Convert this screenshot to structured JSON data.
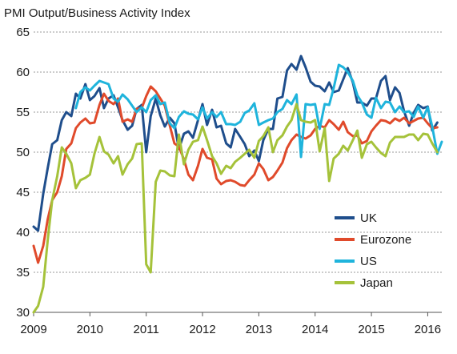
{
  "chart_data": {
    "type": "line",
    "title": "PMI Output/Business Activity Index",
    "xlabel": "",
    "ylabel": "",
    "xlim": [
      2009.0,
      2016.25
    ],
    "ylim": [
      30,
      65
    ],
    "x_ticks": [
      "2009",
      "2010",
      "2011",
      "2012",
      "2013",
      "2014",
      "2015",
      "2016"
    ],
    "y_ticks": [
      "30",
      "35",
      "40",
      "45",
      "50",
      "55",
      "60",
      "65"
    ],
    "grid": "horizontal dashed",
    "legend_position": "bottom-right",
    "series": [
      {
        "name": "UK",
        "color": "#1f4e8c",
        "x": [
          2009.0,
          2009.08,
          2009.17,
          2009.25,
          2009.33,
          2009.42,
          2009.5,
          2009.58,
          2009.67,
          2009.75,
          2009.83,
          2009.92,
          2010.0,
          2010.08,
          2010.17,
          2010.25,
          2010.33,
          2010.42,
          2010.5,
          2010.58,
          2010.67,
          2010.75,
          2010.83,
          2010.92,
          2011.0,
          2011.08,
          2011.17,
          2011.25,
          2011.33,
          2011.42,
          2011.5,
          2011.58,
          2011.67,
          2011.75,
          2011.83,
          2011.92,
          2012.0,
          2012.08,
          2012.17,
          2012.25,
          2012.33,
          2012.42,
          2012.5,
          2012.58,
          2012.67,
          2012.75,
          2012.83,
          2012.92,
          2013.0,
          2013.08,
          2013.17,
          2013.25,
          2013.33,
          2013.42,
          2013.5,
          2013.58,
          2013.67,
          2013.75,
          2013.83,
          2013.92,
          2014.0,
          2014.08,
          2014.17,
          2014.25,
          2014.33,
          2014.42,
          2014.5,
          2014.58,
          2014.67,
          2014.75,
          2014.83,
          2014.92,
          2015.0,
          2015.08,
          2015.17,
          2015.25,
          2015.33,
          2015.42,
          2015.5,
          2015.58,
          2015.67,
          2015.75,
          2015.83,
          2015.92,
          2016.0,
          2016.08,
          2016.17
        ],
        "values": [
          40.7,
          40.2,
          44.8,
          48.0,
          51.0,
          51.5,
          54.0,
          55.0,
          54.5,
          57.3,
          56.7,
          58.5,
          56.5,
          57.0,
          58.0,
          55.5,
          56.7,
          57.1,
          55.6,
          54.0,
          52.8,
          53.3,
          55.4,
          55.9,
          50.0,
          54.5,
          56.7,
          54.6,
          53.2,
          54.3,
          53.6,
          50.4,
          52.3,
          52.6,
          51.8,
          54.0,
          56.0,
          53.4,
          55.3,
          53.1,
          53.3,
          51.1,
          50.6,
          52.9,
          51.9,
          51.0,
          49.5,
          50.2,
          48.9,
          51.5,
          52.9,
          52.9,
          56.7,
          56.9,
          60.2,
          61.0,
          60.3,
          62.0,
          60.6,
          58.8,
          58.3,
          58.2,
          57.6,
          58.7,
          57.5,
          57.7,
          59.1,
          60.5,
          58.7,
          56.2,
          56.2,
          55.8,
          56.7,
          56.7,
          58.9,
          59.5,
          56.5,
          58.1,
          57.4,
          55.1,
          53.3,
          54.9,
          55.9,
          55.5,
          55.7,
          52.7,
          53.7
        ]
      },
      {
        "name": "Eurozone",
        "color": "#e04a2b",
        "x": [
          2009.0,
          2009.08,
          2009.17,
          2009.25,
          2009.33,
          2009.42,
          2009.5,
          2009.58,
          2009.67,
          2009.75,
          2009.83,
          2009.92,
          2010.0,
          2010.08,
          2010.17,
          2010.25,
          2010.33,
          2010.42,
          2010.5,
          2010.58,
          2010.67,
          2010.75,
          2010.83,
          2010.92,
          2011.0,
          2011.08,
          2011.17,
          2011.25,
          2011.33,
          2011.42,
          2011.5,
          2011.58,
          2011.67,
          2011.75,
          2011.83,
          2011.92,
          2012.0,
          2012.08,
          2012.17,
          2012.25,
          2012.33,
          2012.42,
          2012.5,
          2012.58,
          2012.67,
          2012.75,
          2012.83,
          2012.92,
          2013.0,
          2013.08,
          2013.17,
          2013.25,
          2013.33,
          2013.42,
          2013.5,
          2013.58,
          2013.67,
          2013.75,
          2013.83,
          2013.92,
          2014.0,
          2014.08,
          2014.17,
          2014.25,
          2014.33,
          2014.42,
          2014.5,
          2014.58,
          2014.67,
          2014.75,
          2014.83,
          2014.92,
          2015.0,
          2015.08,
          2015.17,
          2015.25,
          2015.33,
          2015.42,
          2015.5,
          2015.58,
          2015.67,
          2015.75,
          2015.83,
          2015.92,
          2016.0,
          2016.08,
          2016.17
        ],
        "values": [
          38.3,
          36.2,
          38.3,
          41.6,
          44.0,
          45.0,
          47.0,
          50.4,
          51.1,
          53.0,
          53.7,
          54.2,
          53.6,
          53.7,
          55.9,
          57.3,
          56.4,
          56.0,
          56.7,
          53.8,
          54.1,
          53.8,
          55.4,
          55.5,
          57.0,
          58.2,
          57.6,
          56.7,
          55.8,
          53.3,
          51.1,
          50.7,
          49.1,
          47.2,
          46.5,
          48.3,
          50.4,
          49.3,
          49.1,
          46.7,
          46.0,
          46.4,
          46.5,
          46.3,
          45.9,
          45.8,
          46.5,
          47.2,
          48.6,
          47.9,
          46.5,
          46.9,
          47.7,
          48.7,
          50.5,
          51.5,
          52.2,
          51.9,
          51.7,
          52.1,
          52.9,
          53.3,
          53.1,
          54.0,
          53.5,
          52.8,
          53.8,
          52.5,
          52.0,
          52.1,
          51.1,
          51.4,
          52.6,
          53.3,
          54.0,
          53.9,
          53.6,
          54.2,
          53.9,
          54.3,
          53.6,
          53.9,
          54.2,
          54.3,
          53.6,
          53.0,
          53.1
        ]
      },
      {
        "name": "US",
        "color": "#1fb4dc",
        "x": [
          2009.75,
          2009.83,
          2009.92,
          2010.0,
          2010.08,
          2010.17,
          2010.25,
          2010.33,
          2010.42,
          2010.5,
          2010.58,
          2010.67,
          2010.75,
          2010.83,
          2010.92,
          2011.0,
          2011.08,
          2011.17,
          2011.25,
          2011.33,
          2011.42,
          2011.5,
          2011.58,
          2011.67,
          2011.75,
          2011.83,
          2011.92,
          2012.0,
          2012.08,
          2012.17,
          2012.25,
          2012.33,
          2012.42,
          2012.5,
          2012.58,
          2012.67,
          2012.75,
          2012.83,
          2012.92,
          2013.0,
          2013.08,
          2013.17,
          2013.25,
          2013.33,
          2013.42,
          2013.5,
          2013.58,
          2013.67,
          2013.75,
          2013.83,
          2013.92,
          2014.0,
          2014.08,
          2014.17,
          2014.25,
          2014.33,
          2014.42,
          2014.5,
          2014.58,
          2014.67,
          2014.75,
          2014.83,
          2014.92,
          2015.0,
          2015.08,
          2015.17,
          2015.25,
          2015.33,
          2015.42,
          2015.5,
          2015.58,
          2015.67,
          2015.75,
          2015.83,
          2015.92,
          2016.0,
          2016.08,
          2016.17,
          2016.25
        ],
        "values": [
          55.5,
          57.5,
          58.1,
          57.7,
          58.3,
          58.9,
          58.7,
          58.5,
          56.7,
          56.3,
          57.2,
          56.6,
          55.8,
          55.0,
          55.6,
          55.0,
          56.5,
          57.1,
          56.0,
          56.2,
          53.6,
          53.0,
          54.4,
          55.1,
          54.8,
          54.7,
          54.1,
          55.6,
          54.2,
          55.0,
          54.4,
          55.0,
          53.5,
          53.5,
          53.4,
          53.8,
          54.9,
          55.2,
          56.1,
          53.4,
          53.7,
          54.0,
          54.2,
          55.0,
          55.4,
          56.5,
          56.0,
          57.2,
          49.4,
          56.0,
          55.9,
          56.0,
          52.9,
          56.0,
          55.9,
          58.0,
          60.9,
          60.6,
          60.0,
          58.9,
          57.1,
          56.2,
          54.7,
          54.3,
          56.8,
          55.5,
          56.3,
          56.2,
          55.0,
          55.7,
          55.0,
          55.1,
          54.4,
          55.7,
          54.3,
          55.6,
          53.2,
          49.8,
          51.3
        ]
      },
      {
        "name": "Japan",
        "color": "#a5c23a",
        "x": [
          2009.0,
          2009.08,
          2009.17,
          2009.25,
          2009.33,
          2009.42,
          2009.5,
          2009.58,
          2009.67,
          2009.75,
          2009.83,
          2009.92,
          2010.0,
          2010.08,
          2010.17,
          2010.25,
          2010.33,
          2010.42,
          2010.5,
          2010.58,
          2010.67,
          2010.75,
          2010.83,
          2010.92,
          2011.0,
          2011.08,
          2011.17,
          2011.25,
          2011.33,
          2011.42,
          2011.5,
          2011.58,
          2011.67,
          2011.75,
          2011.83,
          2011.92,
          2012.0,
          2012.08,
          2012.17,
          2012.25,
          2012.33,
          2012.42,
          2012.5,
          2012.58,
          2012.67,
          2012.75,
          2012.83,
          2012.92,
          2013.0,
          2013.08,
          2013.17,
          2013.25,
          2013.33,
          2013.42,
          2013.5,
          2013.58,
          2013.67,
          2013.75,
          2013.83,
          2013.92,
          2014.0,
          2014.08,
          2014.17,
          2014.25,
          2014.33,
          2014.42,
          2014.5,
          2014.58,
          2014.67,
          2014.75,
          2014.83,
          2014.92,
          2015.0,
          2015.08,
          2015.17,
          2015.25,
          2015.33,
          2015.42,
          2015.5,
          2015.58,
          2015.67,
          2015.75,
          2015.83,
          2015.92,
          2016.0,
          2016.08,
          2016.17
        ],
        "values": [
          30.0,
          30.8,
          33.2,
          39.0,
          44.0,
          47.0,
          50.6,
          49.8,
          48.6,
          45.5,
          46.5,
          46.8,
          47.2,
          49.8,
          51.9,
          50.1,
          49.7,
          48.6,
          49.5,
          47.2,
          48.5,
          49.2,
          51.0,
          51.1,
          36.0,
          35.0,
          46.3,
          47.7,
          47.6,
          47.1,
          47.0,
          52.2,
          48.5,
          50.3,
          51.3,
          51.5,
          53.2,
          51.5,
          49.5,
          48.6,
          47.3,
          48.3,
          48.0,
          48.8,
          49.3,
          49.8,
          50.3,
          49.3,
          51.4,
          52.0,
          53.1,
          50.0,
          51.5,
          52.1,
          53.2,
          54.0,
          56.0,
          54.0,
          53.8,
          53.7,
          54.0,
          50.1,
          53.0,
          46.4,
          49.2,
          49.8,
          50.8,
          50.2,
          51.5,
          52.7,
          49.3,
          51.0,
          51.3,
          50.6,
          49.9,
          49.5,
          51.2,
          51.9,
          51.9,
          51.9,
          52.2,
          52.2,
          51.5,
          52.3,
          52.2,
          51.1,
          50.0
        ]
      }
    ]
  }
}
